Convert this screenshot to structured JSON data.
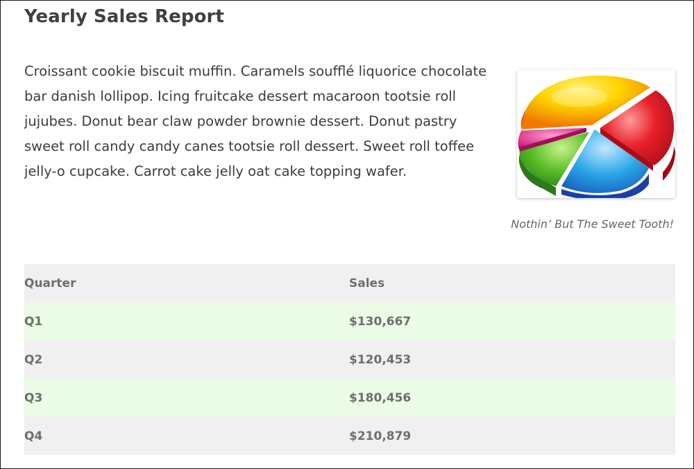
{
  "page": {
    "title": "Yearly Sales Report",
    "paragraph": "Croissant cookie biscuit muffin. Caramels soufflé liquorice chocolate bar danish lollipop. Icing fruitcake dessert macaroon tootsie roll jujubes. Donut bear claw powder brownie dessert. Donut pastry sweet roll candy candy canes tootsie roll dessert. Sweet roll toffee jelly-o cupcake. Carrot cake jelly oat cake topping wafer.",
    "figure_caption": "Nothin’ But The Sweet Tooth!",
    "figure_icon": "3d-pie-chart-image"
  },
  "table": {
    "headers": [
      "Quarter",
      "Sales"
    ],
    "rows": [
      {
        "quarter": "Q1",
        "sales": "$130,667"
      },
      {
        "quarter": "Q2",
        "sales": "$120,453"
      },
      {
        "quarter": "Q3",
        "sales": "$180,456"
      },
      {
        "quarter": "Q4",
        "sales": "$210,879"
      }
    ]
  },
  "colors": {
    "row_green": "#eafbe6",
    "row_gray": "#f0f0f0",
    "title_text": "#404040"
  }
}
